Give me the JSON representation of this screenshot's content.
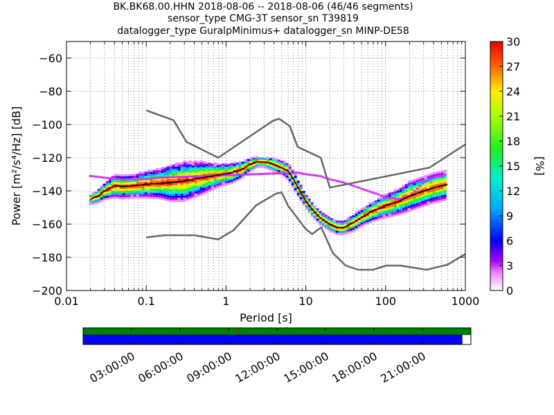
{
  "title_lines": [
    "BK.BK68.00.HHN   2018-08-06 -- 2018-08-06  (46/46 segments)",
    "sensor_type CMG-3T sensor_sn T39819",
    "datalogger_type GuralpMinimus+ datalogger_sn MINP-DE58"
  ],
  "chart_data": {
    "type": "heatmap",
    "xlabel": "Period [s]",
    "ylabel": "Power [m²/s⁴/Hz] [dB]",
    "xscale": "log",
    "xlim": [
      0.01,
      1000
    ],
    "ylim": [
      -200,
      -50
    ],
    "xticks": [
      0.01,
      0.1,
      1,
      10,
      100,
      1000
    ],
    "xtick_labels": [
      "0.01",
      "0.1",
      "1",
      "10",
      "100",
      "1000"
    ],
    "yticks": [
      -200,
      -180,
      -160,
      -140,
      -120,
      -100,
      -80,
      -60
    ],
    "ytick_labels": [
      "−200",
      "−180",
      "−160",
      "−140",
      "−120",
      "−100",
      "−80",
      "−60"
    ],
    "grid": true,
    "colorbar": {
      "label": "[%]",
      "range": [
        0,
        30
      ],
      "ticks": [
        0,
        3,
        6,
        9,
        12,
        15,
        18,
        21,
        24,
        27,
        30
      ],
      "tick_labels": [
        "0",
        "3",
        "6",
        "9",
        "12",
        "15",
        "18",
        "21",
        "24",
        "27",
        "30"
      ]
    },
    "series": [
      {
        "role": "reference-high",
        "color": "#666666",
        "x": [
          0.1,
          0.22,
          0.32,
          0.8,
          3.8,
          4.6,
          6.3,
          7.9,
          15.4,
          20,
          354,
          1000
        ],
        "y": [
          -91.5,
          -97.4,
          -110.5,
          -120,
          -98,
          -96.5,
          -101,
          -113.5,
          -120,
          -138,
          -126,
          -112
        ]
      },
      {
        "role": "reference-low",
        "color": "#666666",
        "x": [
          0.1,
          0.17,
          0.4,
          0.8,
          1.24,
          2.4,
          4.3,
          5,
          6,
          10,
          12,
          15.6,
          21.9,
          31.6,
          45,
          70,
          101,
          154,
          328,
          600,
          1000
        ],
        "y": [
          -168,
          -166.7,
          -166.7,
          -169.2,
          -163.7,
          -148.6,
          -141.5,
          -141,
          -149,
          -163,
          -166,
          -162,
          -177.5,
          -185,
          -187.5,
          -187.5,
          -185,
          -185,
          -187.5,
          -184.4,
          -178
        ]
      },
      {
        "role": "mode",
        "color": "#000000",
        "x": [
          0.02,
          0.025,
          0.03,
          0.04,
          0.05,
          0.07,
          0.1,
          0.15,
          0.2,
          0.3,
          0.5,
          0.8,
          1.2,
          1.6,
          2,
          2.5,
          3,
          4,
          5,
          6,
          7,
          8,
          10,
          12,
          15,
          20,
          25,
          30,
          40,
          50,
          70,
          100,
          150,
          200,
          300,
          400,
          600
        ],
        "y": [
          -145,
          -143,
          -140,
          -137,
          -137.5,
          -137,
          -136,
          -135.5,
          -135,
          -134,
          -132,
          -130.5,
          -129,
          -127,
          -124,
          -122.5,
          -122.5,
          -124,
          -126,
          -128,
          -133,
          -138,
          -146,
          -151,
          -156,
          -160,
          -162,
          -162,
          -159,
          -156,
          -152,
          -149,
          -146,
          -143,
          -140,
          -138,
          -136
        ]
      }
    ],
    "density_band": {
      "x": [
        0.02,
        0.025,
        0.03,
        0.04,
        0.05,
        0.07,
        0.1,
        0.15,
        0.2,
        0.3,
        0.5,
        0.8,
        1.2,
        1.6,
        2,
        2.5,
        3,
        4,
        5,
        6,
        7,
        8,
        10,
        12,
        15,
        20,
        25,
        30,
        40,
        50,
        70,
        100,
        150,
        200,
        300,
        400,
        600
      ],
      "spread": [
        3,
        4,
        5,
        7,
        7,
        7,
        8,
        9,
        11,
        12,
        10,
        7,
        6,
        5,
        4,
        3,
        3,
        4,
        4,
        5,
        5,
        5,
        4,
        4,
        4,
        4,
        4,
        4,
        5,
        5,
        6,
        7,
        8,
        9,
        9,
        9,
        9
      ]
    },
    "outlier_trace": {
      "color": "#cc33ff",
      "x": [
        0.02,
        0.03,
        0.05,
        0.1,
        0.15,
        8,
        10,
        15,
        20,
        30,
        40,
        60,
        80,
        100,
        150,
        200,
        300,
        400,
        600
      ],
      "y": [
        -131,
        -132,
        -133,
        -133,
        -132,
        -129,
        -130,
        -131,
        -133,
        -135,
        -137,
        -140,
        -142,
        -144,
        -145,
        -143,
        -135,
        -132,
        -130
      ]
    }
  },
  "timeline": {
    "ticks": [
      "03:00:00",
      "06:00:00",
      "09:00:00",
      "12:00:00",
      "15:00:00",
      "18:00:00",
      "21:00:00"
    ],
    "data_coverage_fraction": 0.978,
    "psd_coverage_fraction": 1.0,
    "data_color": "#0000ff",
    "psd_color": "#008000"
  }
}
